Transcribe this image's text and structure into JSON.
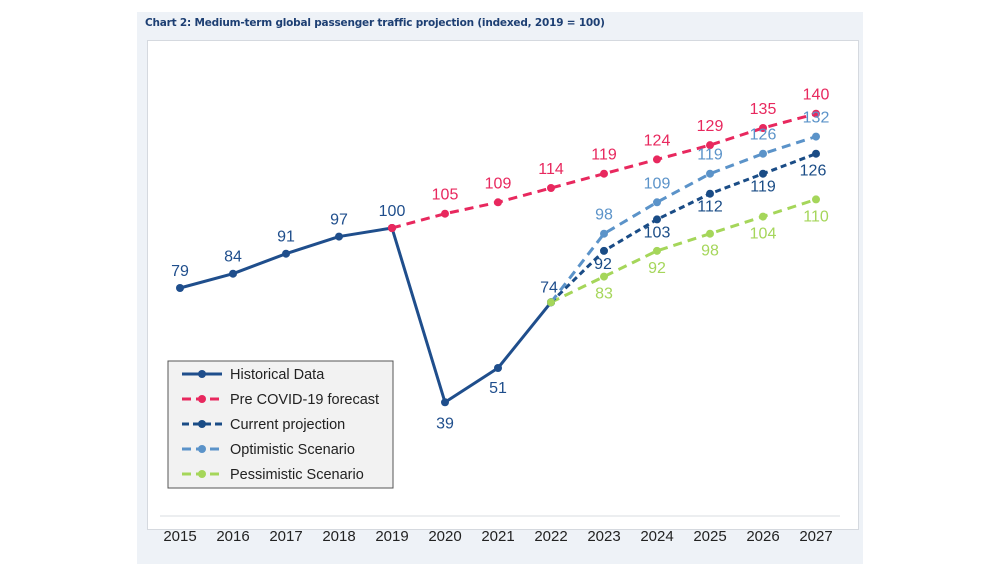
{
  "chart_data": {
    "type": "line",
    "title": "Chart 2: Medium-term global passenger traffic projection (indexed, 2019 = 100)",
    "xlabel": "",
    "ylabel": "",
    "categories": [
      "2015",
      "2016",
      "2017",
      "2018",
      "2019",
      "2020",
      "2021",
      "2022",
      "2023",
      "2024",
      "2025",
      "2026",
      "2027"
    ],
    "ylim": [
      30,
      145
    ],
    "grid": false,
    "legend_position": "bottom-left",
    "series": [
      {
        "name": "Historical Data",
        "color": "#1f4e8c",
        "style": "solid",
        "values": [
          79,
          84,
          91,
          97,
          100,
          39,
          51,
          74,
          null,
          null,
          null,
          null,
          null
        ]
      },
      {
        "name": "Pre COVID-19 forecast",
        "color": "#e8285e",
        "style": "dashed",
        "values": [
          null,
          null,
          null,
          null,
          100,
          105,
          109,
          114,
          119,
          124,
          129,
          135,
          140
        ]
      },
      {
        "name": "Current projection",
        "color": "#1a4c86",
        "style": "dotted",
        "values": [
          null,
          null,
          null,
          null,
          null,
          null,
          null,
          74,
          92,
          103,
          112,
          119,
          126
        ]
      },
      {
        "name": "Optimistic Scenario",
        "color": "#5b93c9",
        "style": "dashed",
        "values": [
          null,
          null,
          null,
          null,
          null,
          null,
          null,
          74,
          98,
          109,
          119,
          126,
          132
        ]
      },
      {
        "name": "Pessimistic Scenario",
        "color": "#a5d65a",
        "style": "dashed",
        "values": [
          null,
          null,
          null,
          null,
          null,
          null,
          null,
          74,
          83,
          92,
          98,
          104,
          110
        ]
      }
    ]
  }
}
